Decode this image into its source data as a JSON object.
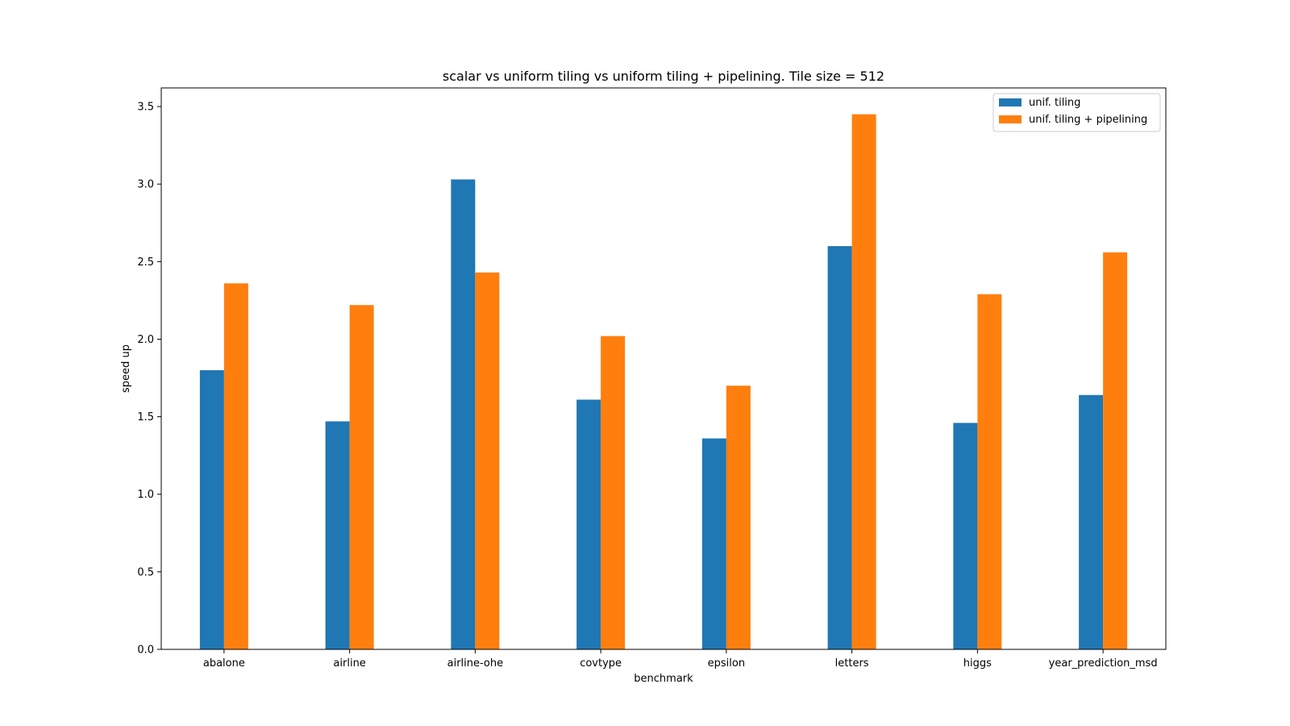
{
  "chart_data": {
    "type": "bar",
    "title": "scalar vs uniform tiling vs uniform tiling + pipelining. Tile size = 512",
    "xlabel": "benchmark",
    "ylabel": "speed up",
    "categories": [
      "abalone",
      "airline",
      "airline-ohe",
      "covtype",
      "epsilon",
      "letters",
      "higgs",
      "year_prediction_msd"
    ],
    "series": [
      {
        "name": "unif. tiling",
        "color": "#1f77b4",
        "values": [
          1.8,
          1.47,
          3.03,
          1.61,
          1.36,
          2.6,
          1.46,
          1.64
        ]
      },
      {
        "name": "unif. tiling + pipelining",
        "color": "#ff7f0e",
        "values": [
          2.36,
          2.22,
          2.43,
          2.02,
          1.7,
          3.45,
          2.29,
          2.56
        ]
      }
    ],
    "yticks": [
      "0.0",
      "0.5",
      "1.0",
      "1.5",
      "2.0",
      "2.5",
      "3.0",
      "3.5"
    ],
    "ylim": [
      0,
      3.62
    ],
    "grid": false,
    "legend_position": "top-right"
  }
}
